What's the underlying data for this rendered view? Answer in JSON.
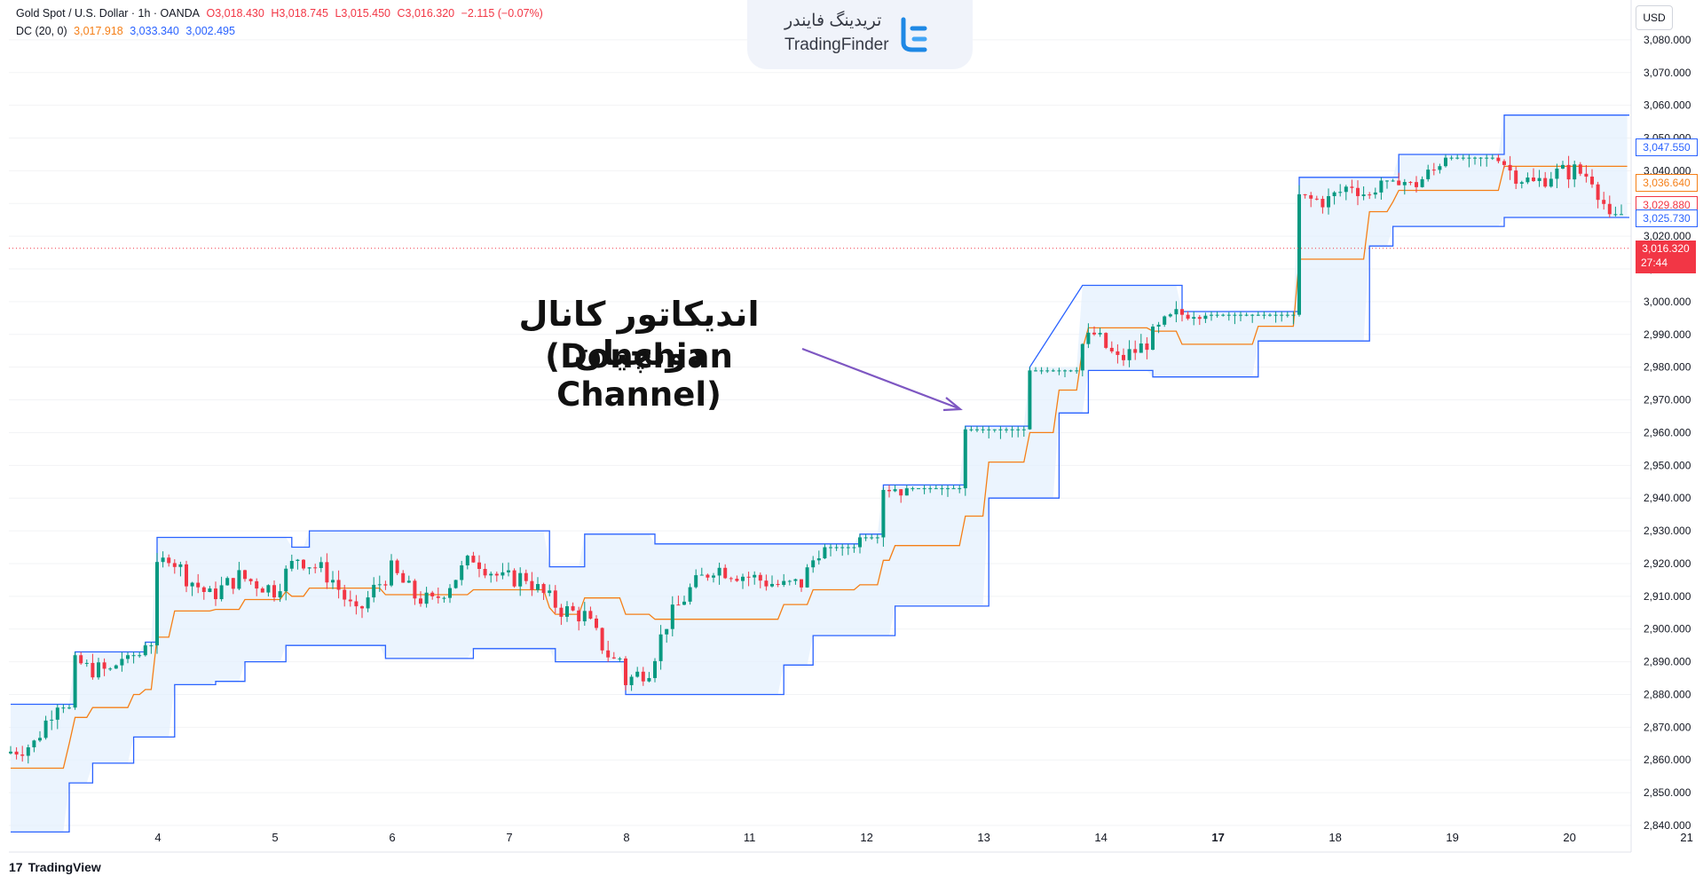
{
  "header": {
    "symbol": "Gold Spot / U.S. Dollar · 1h · OANDA",
    "open": "O3,018.430",
    "high": "H3,018.745",
    "low": "L3,015.450",
    "close": "C3,016.320",
    "change": "−2.115 (−0.07%)",
    "indicator": "DC (20, 0)",
    "dc_middle": "3,017.918",
    "dc_upper": "3,033.340",
    "dc_lower": "3,002.495"
  },
  "currency": "USD",
  "watermark": {
    "fa": "تریدینگ فایندر",
    "en": "TradingFinder"
  },
  "annotation": {
    "fa": "اندیکاتور کانال دونچیان",
    "en": "(Donchian Channel)"
  },
  "footer": {
    "brand_mark": "17",
    "brand": "TradingView"
  },
  "price_labels": {
    "upper": "3,047.550",
    "middle": "3,036.640",
    "close": "3,029.880",
    "lower": "3,025.730",
    "last": "3,016.320",
    "countdown": "27:44"
  },
  "colors": {
    "up": "#089981",
    "down": "#f23645",
    "channel_band": "#2962ff",
    "channel_mid": "#f57f17",
    "fill": "#e3effd",
    "arrow": "#7e57c2",
    "last_price": "#f23645"
  },
  "chart_data": {
    "type": "candlestick",
    "title": "",
    "indicator": "Donchian Channel (20, 0)",
    "ylim": [
      2835,
      3085
    ],
    "y_ticks": [
      2840,
      2850,
      2860,
      2870,
      2880,
      2890,
      2900,
      2910,
      2920,
      2930,
      2940,
      2950,
      2960,
      2970,
      2980,
      2990,
      3000,
      3010,
      3020,
      3030,
      3040,
      3050,
      3060,
      3070,
      3080
    ],
    "y_tick_labels": [
      "2,840.000",
      "2,850.000",
      "2,860.000",
      "2,870.000",
      "2,880.000",
      "2,890.000",
      "2,900.000",
      "2,910.000",
      "2,920.000",
      "2,930.000",
      "2,940.000",
      "2,950.000",
      "2,960.000",
      "2,970.000",
      "2,980.000",
      "2,990.000",
      "3,000.000",
      "3,010.000",
      "3,020.000",
      "3,030.000",
      "3,040.000",
      "3,050.000",
      "3,060.000",
      "3,070.000",
      "3,080.000"
    ],
    "x_ticks": [
      {
        "label": "4",
        "bar": 10
      },
      {
        "label": "5",
        "bar": 30
      },
      {
        "label": "6",
        "bar": 50
      },
      {
        "label": "7",
        "bar": 70
      },
      {
        "label": "8",
        "bar": 90
      },
      {
        "label": "11",
        "bar": 111
      },
      {
        "label": "12",
        "bar": 131
      },
      {
        "label": "13",
        "bar": 151
      },
      {
        "label": "14",
        "bar": 171
      },
      {
        "label": "17",
        "bar": 191
      },
      {
        "label": "18",
        "bar": 211
      },
      {
        "label": "19",
        "bar": 231
      },
      {
        "label": "20",
        "bar": 251
      },
      {
        "label": "21",
        "bar": 271
      }
    ],
    "series": [
      {
        "name": "Gold Spot / U.S. Dollar",
        "type": "candlestick",
        "closes": [],
        "note": "generated close path follows channel anchors below"
      }
    ],
    "close_anchors": [
      [
        0,
        2862
      ],
      [
        5,
        2865
      ],
      [
        8,
        2875
      ],
      [
        10,
        2893
      ],
      [
        14,
        2888
      ],
      [
        18,
        2887
      ],
      [
        23,
        2898
      ],
      [
        25,
        2915
      ],
      [
        28,
        2923
      ],
      [
        31,
        2916
      ],
      [
        35,
        2910
      ],
      [
        40,
        2916
      ],
      [
        46,
        2912
      ],
      [
        50,
        2922
      ],
      [
        54,
        2918
      ],
      [
        56,
        2915
      ],
      [
        60,
        2904
      ],
      [
        63,
        2912
      ],
      [
        66,
        2918
      ],
      [
        70,
        2910
      ],
      [
        73,
        2908
      ],
      [
        76,
        2914
      ],
      [
        80,
        2922
      ],
      [
        85,
        2915
      ],
      [
        89,
        2916
      ],
      [
        91,
        2912
      ],
      [
        95,
        2906
      ],
      [
        99,
        2904
      ],
      [
        102,
        2895
      ],
      [
        106,
        2884
      ],
      [
        110,
        2888
      ],
      [
        113,
        2902
      ],
      [
        117,
        2912
      ],
      [
        121,
        2919
      ],
      [
        125,
        2917
      ],
      [
        129,
        2915
      ],
      [
        133,
        2913
      ],
      [
        136,
        2914
      ],
      [
        140,
        2928
      ],
      [
        143,
        2938
      ],
      [
        147,
        2940
      ],
      [
        150,
        2944
      ],
      [
        153,
        2943
      ],
      [
        155,
        2952
      ],
      [
        158,
        2975
      ],
      [
        161,
        2983
      ],
      [
        165,
        2985
      ],
      [
        170,
        2988
      ],
      [
        172,
        2995
      ],
      [
        175,
        2985
      ],
      [
        179,
        2984
      ],
      [
        184,
        2987
      ],
      [
        186,
        2990
      ],
      [
        190,
        2982
      ],
      [
        194,
        2986
      ],
      [
        198,
        2993
      ],
      [
        201,
        2997
      ],
      [
        205,
        2998
      ],
      [
        207,
        3004
      ],
      [
        210,
        3015
      ],
      [
        214,
        3030
      ],
      [
        218,
        3034
      ],
      [
        222,
        3031
      ],
      [
        226,
        3031
      ],
      [
        230,
        3036
      ],
      [
        233,
        3032
      ],
      [
        236,
        3042
      ],
      [
        240,
        3035
      ],
      [
        244,
        3040
      ],
      [
        247,
        3049
      ],
      [
        250,
        3052
      ],
      [
        254,
        3048
      ],
      [
        257,
        3040
      ],
      [
        261,
        3036
      ],
      [
        264,
        3039
      ],
      [
        268,
        3040
      ],
      [
        271,
        3038
      ],
      [
        273,
        3030
      ],
      [
        275,
        3016.32
      ]
    ],
    "dc_upper": [
      [
        0,
        2877
      ],
      [
        11,
        2877
      ],
      [
        11,
        2893
      ],
      [
        23,
        2893
      ],
      [
        23,
        2896
      ],
      [
        25,
        2896
      ],
      [
        25,
        2928
      ],
      [
        48,
        2928
      ],
      [
        48,
        2925
      ],
      [
        51,
        2925
      ],
      [
        51,
        2930
      ],
      [
        92,
        2930
      ],
      [
        92,
        2919
      ],
      [
        98,
        2919
      ],
      [
        98,
        2929
      ],
      [
        110,
        2929
      ],
      [
        110,
        2926
      ],
      [
        145,
        2926
      ],
      [
        145,
        2929
      ],
      [
        149,
        2929
      ],
      [
        149,
        2944
      ],
      [
        163,
        2944
      ],
      [
        163,
        2962
      ],
      [
        174,
        2962
      ],
      [
        174,
        2980
      ],
      [
        183,
        3005
      ],
      [
        200,
        3005
      ],
      [
        200,
        2997
      ],
      [
        220,
        2997
      ],
      [
        220,
        3038
      ],
      [
        237,
        3038
      ],
      [
        237,
        3045
      ],
      [
        255,
        3045
      ],
      [
        255,
        3057
      ],
      [
        279,
        3057
      ]
    ],
    "dc_lower": [
      [
        0,
        2838
      ],
      [
        10,
        2838
      ],
      [
        10,
        2853
      ],
      [
        14,
        2853
      ],
      [
        14,
        2859
      ],
      [
        21,
        2859
      ],
      [
        21,
        2867
      ],
      [
        28,
        2867
      ],
      [
        28,
        2883
      ],
      [
        35,
        2883
      ],
      [
        35,
        2884
      ],
      [
        40,
        2884
      ],
      [
        40,
        2890
      ],
      [
        47,
        2890
      ],
      [
        47,
        2895
      ],
      [
        64,
        2895
      ],
      [
        64,
        2891
      ],
      [
        79,
        2891
      ],
      [
        79,
        2894
      ],
      [
        93,
        2894
      ],
      [
        93,
        2890
      ],
      [
        105,
        2890
      ],
      [
        105,
        2880
      ],
      [
        132,
        2880
      ],
      [
        132,
        2889
      ],
      [
        137,
        2889
      ],
      [
        137,
        2898
      ],
      [
        151,
        2898
      ],
      [
        151,
        2907
      ],
      [
        167,
        2907
      ],
      [
        167,
        2940
      ],
      [
        179,
        2940
      ],
      [
        179,
        2966
      ],
      [
        184,
        2966
      ],
      [
        184,
        2979
      ],
      [
        195,
        2979
      ],
      [
        195,
        2977
      ],
      [
        213,
        2977
      ],
      [
        213,
        2988
      ],
      [
        232,
        2988
      ],
      [
        232,
        3017
      ],
      [
        236,
        3017
      ],
      [
        236,
        3023
      ],
      [
        255,
        3023
      ],
      [
        255,
        3025.73
      ],
      [
        279,
        3025.73
      ]
    ],
    "last_price": 3016.32,
    "bar_count": 276
  }
}
